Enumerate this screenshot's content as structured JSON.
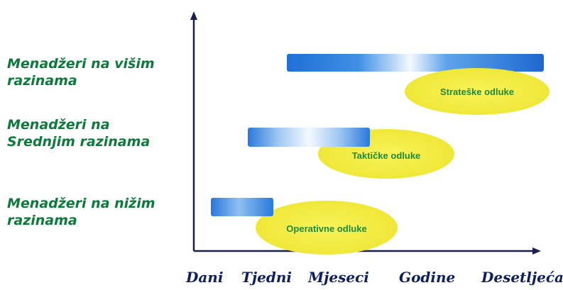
{
  "manager_levels": [
    {
      "label": "Menadžeri na višim\nrazinama"
    },
    {
      "label": "Menadžeri na\nSrednjim razinama"
    },
    {
      "label": "Menadžeri na nižim\n razinama"
    }
  ],
  "decisions": [
    {
      "label": "Strateške odluke",
      "from": "Tjedni",
      "to": "Desetljeća"
    },
    {
      "label": "Taktičke odluke",
      "from": "Dani",
      "to": "Mjeseci"
    },
    {
      "label": "Operativne odluke",
      "from": "Dani",
      "to": "Dani"
    }
  ],
  "time_axis": [
    "Dani",
    "Tjedni",
    "Mjeseci",
    "Godine",
    "Desetljeća"
  ],
  "colors": {
    "bar_blue": "#1f6fd6",
    "bar_light": "#f4f9ff",
    "ellipse_yellow": "#f5ef3a",
    "ellipse_text": "#1e8a3c",
    "level_text": "#0d7a3c",
    "axis_text": "#0e1f5e",
    "axis_line": "#1a1f4d"
  }
}
